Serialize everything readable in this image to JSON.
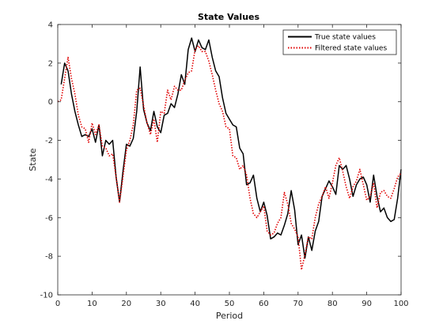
{
  "chart_data": {
    "type": "line",
    "title": "State Values",
    "xlabel": "Period",
    "ylabel": "State",
    "xlim": [
      0,
      100
    ],
    "ylim": [
      -10,
      4
    ],
    "xticks": [
      0,
      10,
      20,
      30,
      40,
      50,
      60,
      70,
      80,
      90,
      100
    ],
    "yticks": [
      4,
      2,
      0,
      -2,
      -4,
      -6,
      -8,
      -10
    ],
    "grid": false,
    "legend_position": "top-right",
    "series": [
      {
        "name": "True state values",
        "color": "#000000",
        "style": "solid",
        "x": [
          1,
          2,
          3,
          4,
          5,
          6,
          7,
          8,
          9,
          10,
          11,
          12,
          13,
          14,
          15,
          16,
          17,
          18,
          19,
          20,
          21,
          22,
          23,
          24,
          25,
          26,
          27,
          28,
          29,
          30,
          31,
          32,
          33,
          34,
          35,
          36,
          37,
          38,
          39,
          40,
          41,
          42,
          43,
          44,
          45,
          46,
          47,
          48,
          49,
          50,
          51,
          52,
          53,
          54,
          55,
          56,
          57,
          58,
          59,
          60,
          61,
          62,
          63,
          64,
          65,
          66,
          67,
          68,
          69,
          70,
          71,
          72,
          73,
          74,
          75,
          76,
          77,
          78,
          79,
          80,
          81,
          82,
          83,
          84,
          85,
          86,
          87,
          88,
          89,
          90,
          91,
          92,
          93,
          94,
          95,
          96,
          97,
          98,
          99,
          100
        ],
        "values": [
          0.9,
          2.0,
          1.6,
          0.4,
          -0.5,
          -1.2,
          -1.8,
          -1.7,
          -1.8,
          -1.4,
          -2.1,
          -1.2,
          -2.8,
          -2.0,
          -2.2,
          -2.0,
          -3.9,
          -5.2,
          -3.6,
          -2.2,
          -2.3,
          -1.9,
          -0.5,
          1.8,
          -0.4,
          -1.1,
          -1.5,
          -0.5,
          -1.3,
          -1.6,
          -0.7,
          -0.6,
          -0.1,
          -0.3,
          0.4,
          1.4,
          0.9,
          2.7,
          3.3,
          2.6,
          3.2,
          2.8,
          2.7,
          3.2,
          2.3,
          1.6,
          1.3,
          0.2,
          -0.6,
          -0.9,
          -1.2,
          -1.3,
          -2.4,
          -2.7,
          -4.3,
          -4.2,
          -3.8,
          -5.0,
          -5.7,
          -5.2,
          -5.9,
          -7.1,
          -7.0,
          -6.8,
          -6.9,
          -6.4,
          -5.8,
          -4.6,
          -5.6,
          -7.4,
          -6.9,
          -8.1,
          -7.0,
          -7.7,
          -6.7,
          -6.2,
          -4.9,
          -4.5,
          -4.1,
          -4.4,
          -4.8,
          -3.3,
          -3.5,
          -3.3,
          -4.0,
          -4.9,
          -4.3,
          -4.0,
          -3.9,
          -4.3,
          -5.2,
          -3.8,
          -4.9,
          -5.7,
          -5.5,
          -6.0,
          -6.2,
          -6.1,
          -5.0,
          -3.5
        ]
      },
      {
        "name": "Filtered state values",
        "color": "#e00000",
        "style": "dotted",
        "x": [
          0,
          1,
          2,
          3,
          4,
          5,
          6,
          7,
          8,
          9,
          10,
          11,
          12,
          13,
          14,
          15,
          16,
          17,
          18,
          19,
          20,
          21,
          22,
          23,
          24,
          25,
          26,
          27,
          28,
          29,
          30,
          31,
          32,
          33,
          34,
          35,
          36,
          37,
          38,
          39,
          40,
          41,
          42,
          43,
          44,
          45,
          46,
          47,
          48,
          49,
          50,
          51,
          52,
          53,
          54,
          55,
          56,
          57,
          58,
          59,
          60,
          61,
          62,
          63,
          64,
          65,
          66,
          67,
          68,
          69,
          70,
          71,
          72,
          73,
          74,
          75,
          76,
          77,
          78,
          79,
          80,
          81,
          82,
          83,
          84,
          85,
          86,
          87,
          88,
          89,
          90,
          91,
          92,
          93,
          94,
          95,
          96,
          97,
          98,
          99,
          100
        ],
        "values": [
          0.0,
          0.1,
          1.2,
          2.3,
          1.2,
          0.4,
          -0.7,
          -1.3,
          -1.4,
          -2.1,
          -1.1,
          -1.7,
          -1.2,
          -2.3,
          -2.4,
          -2.8,
          -2.7,
          -3.9,
          -5.2,
          -3.9,
          -2.5,
          -2.0,
          -1.2,
          0.6,
          0.7,
          -0.2,
          -1.1,
          -1.7,
          -0.9,
          -2.1,
          -0.5,
          -0.6,
          0.6,
          0.1,
          0.8,
          0.6,
          0.6,
          1.1,
          1.5,
          1.6,
          2.7,
          2.9,
          2.6,
          2.6,
          2.1,
          1.4,
          0.6,
          -0.1,
          -0.5,
          -1.3,
          -1.4,
          -2.8,
          -2.9,
          -3.5,
          -3.3,
          -3.8,
          -5.0,
          -5.8,
          -6.0,
          -5.7,
          -5.4,
          -6.7,
          -6.9,
          -6.8,
          -6.3,
          -6.0,
          -4.7,
          -5.3,
          -6.3,
          -6.6,
          -7.0,
          -8.7,
          -7.9,
          -7.0,
          -7.1,
          -6.0,
          -5.3,
          -4.9,
          -4.4,
          -5.0,
          -4.2,
          -3.3,
          -2.9,
          -3.6,
          -4.4,
          -5.0,
          -4.4,
          -4.1,
          -3.5,
          -4.3,
          -5.1,
          -4.9,
          -4.2,
          -5.5,
          -4.7,
          -4.6,
          -4.9,
          -5.0,
          -4.5,
          -3.9,
          -3.7
        ]
      }
    ]
  }
}
